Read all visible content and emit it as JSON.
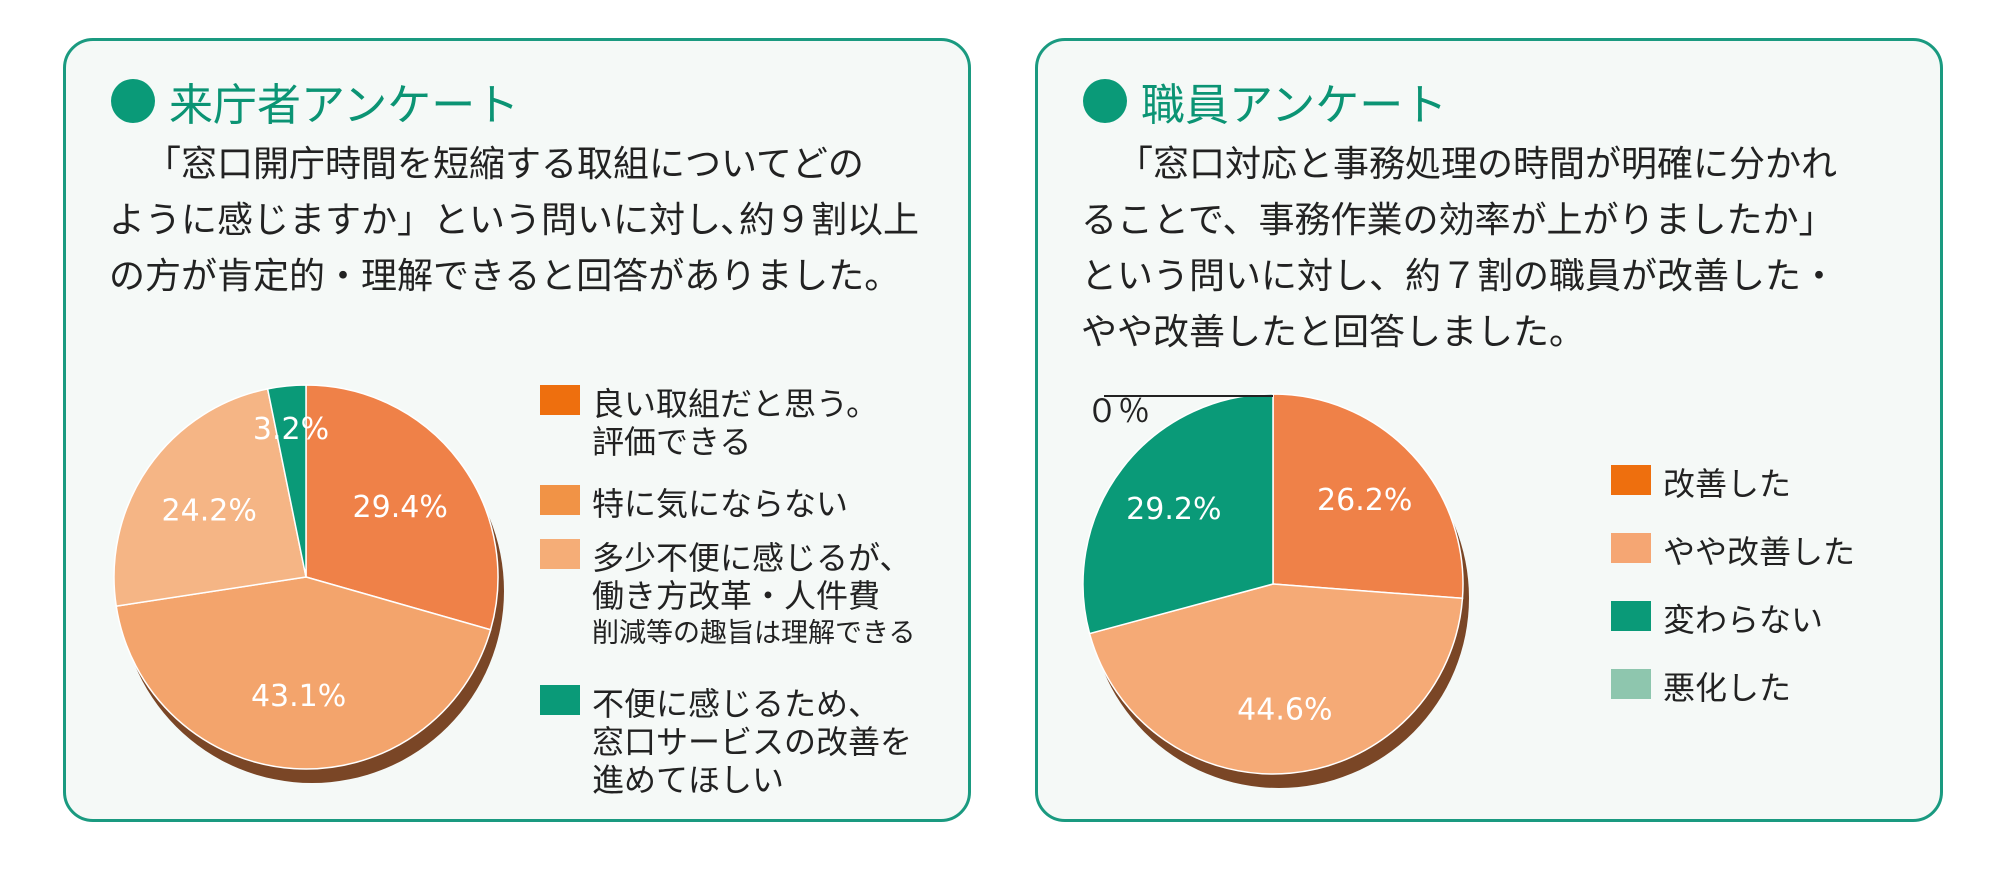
{
  "left_panel": {
    "title": "来庁者アンケート",
    "description_lines": [
      "「窓口開庁時間を短縮する取組についてどの",
      "ように感じますか」という問いに対し､約９割以上",
      "の方が肯定的・理解できると回答がありました。"
    ],
    "legend": [
      {
        "lines": [
          "良い取組だと思う。",
          "評価できる"
        ],
        "color": "#ee6f0e"
      },
      {
        "lines": [
          "特に気にならない"
        ],
        "color": "#f19346"
      },
      {
        "lines": [
          "多少不便に感じるが、",
          "働き方改革・人件費",
          "削減等の趣旨は理解できる"
        ],
        "color": "#f5ad77"
      },
      {
        "lines": [
          "不便に感じるため、",
          "窓口サービスの改善を",
          "進めてほしい"
        ],
        "color": "#0a9a78"
      }
    ]
  },
  "right_panel": {
    "title": "職員アンケート",
    "description_lines": [
      "「窓口対応と事務処理の時間が明確に分かれ",
      "ることで、事務作業の効率が上がりましたか」",
      "という問いに対し、約７割の職員が改善した・",
      "やや改善したと回答しました。"
    ],
    "legend": [
      {
        "lines": [
          "改善した"
        ],
        "color": "#ee6f0e"
      },
      {
        "lines": [
          "やや改善した"
        ],
        "color": "#f5a673"
      },
      {
        "lines": [
          "変わらない"
        ],
        "color": "#0a9a78"
      },
      {
        "lines": [
          "悪化した"
        ],
        "color": "#8ec6ae"
      }
    ],
    "zero_annotation": "０％"
  },
  "chart_data": [
    {
      "type": "pie",
      "slices": [
        {
          "label": "29.4%",
          "value": 29.4,
          "color": "#ef8148"
        },
        {
          "label": "43.1%",
          "value": 43.1,
          "color": "#f3a46c"
        },
        {
          "label": "24.2%",
          "value": 24.2,
          "color": "#f5b585"
        },
        {
          "label": "3.2%",
          "value": 3.2,
          "color": "#0a9a78"
        }
      ]
    },
    {
      "type": "pie",
      "slices": [
        {
          "label": "26.2%",
          "value": 26.2,
          "color": "#ef8148"
        },
        {
          "label": "44.6%",
          "value": 44.6,
          "color": "#f5aa76"
        },
        {
          "label": "29.2%",
          "value": 29.2,
          "color": "#0a9a78"
        },
        {
          "label": "0%",
          "value": 0,
          "color": "#8ec6ae"
        }
      ]
    }
  ]
}
